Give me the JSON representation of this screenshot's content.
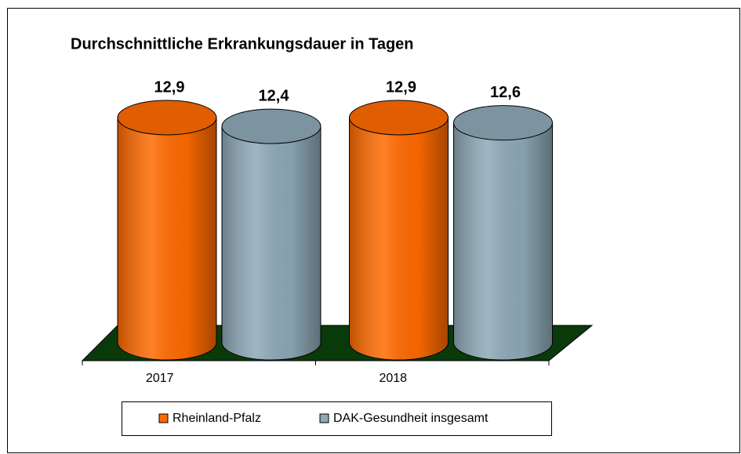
{
  "chart_data": {
    "type": "cylinder-bar",
    "title": "Durchschnittliche Erkrankungsdauer in Tagen",
    "categories": [
      "2017",
      "2018"
    ],
    "series": [
      {
        "name": "Rheinland-Pfalz",
        "color": "#ff6a00",
        "values": [
          12.9,
          12.9
        ],
        "value_labels": [
          "12,9",
          "12,9"
        ]
      },
      {
        "name": "DAK-Gesundheit insgesamt",
        "color": "#8ea9b7",
        "values": [
          12.4,
          12.6
        ],
        "value_labels": [
          "12,4",
          "12,6"
        ]
      }
    ],
    "legend": "bottom"
  }
}
